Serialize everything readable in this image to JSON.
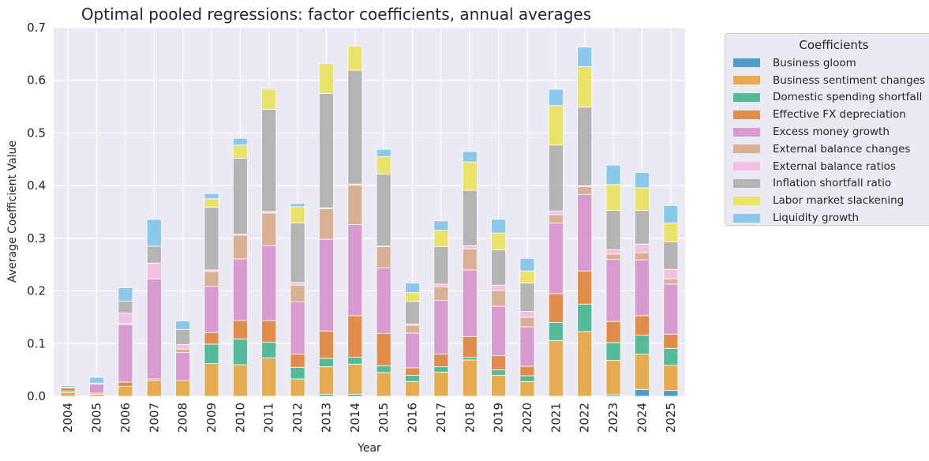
{
  "chart_data": {
    "type": "bar",
    "stacked": true,
    "title": "Optimal pooled regressions: factor coefficients, annual averages",
    "xlabel": "Year",
    "ylabel": "Average Coefficient Value",
    "ylim": [
      0,
      0.7
    ],
    "yticks": [
      "0.0",
      "0.1",
      "0.2",
      "0.3",
      "0.4",
      "0.5",
      "0.6",
      "0.7"
    ],
    "grid": true,
    "legend_title": "Coefficients",
    "legend_position": "outside-right",
    "categories": [
      "2004",
      "2005",
      "2006",
      "2007",
      "2008",
      "2009",
      "2010",
      "2011",
      "2012",
      "2013",
      "2014",
      "2015",
      "2016",
      "2017",
      "2018",
      "2019",
      "2020",
      "2021",
      "2022",
      "2023",
      "2024",
      "2025"
    ],
    "series": [
      {
        "name": "Business gloom",
        "color": "#3b8fc2",
        "values": [
          0,
          0,
          0,
          0,
          0,
          0,
          0,
          0,
          0,
          0.004,
          0.004,
          0,
          0,
          0,
          0,
          0,
          0,
          0,
          0,
          0.003,
          0.013,
          0.011
        ]
      },
      {
        "name": "Business sentiment changes",
        "color": "#e2a23a",
        "values": [
          0.007,
          0.004,
          0.019,
          0.03,
          0.03,
          0.062,
          0.06,
          0.073,
          0.033,
          0.052,
          0.057,
          0.045,
          0.028,
          0.046,
          0.069,
          0.04,
          0.028,
          0.106,
          0.123,
          0.065,
          0.067,
          0.048
        ]
      },
      {
        "name": "Domestic spending shortfall",
        "color": "#3fb38c",
        "values": [
          0.003,
          0,
          0,
          0,
          0,
          0.037,
          0.049,
          0.03,
          0.022,
          0.016,
          0.013,
          0.013,
          0.012,
          0.01,
          0.005,
          0.01,
          0.011,
          0.034,
          0.052,
          0.034,
          0.036,
          0.032
        ]
      },
      {
        "name": "Effective FX depreciation",
        "color": "#de7e34",
        "values": [
          0.006,
          0.002,
          0.008,
          0.003,
          0,
          0.022,
          0.035,
          0.04,
          0.025,
          0.052,
          0.079,
          0.061,
          0.014,
          0.024,
          0.039,
          0.027,
          0.018,
          0.055,
          0.063,
          0.04,
          0.037,
          0.027
        ]
      },
      {
        "name": "Excess money growth",
        "color": "#d48fc9",
        "values": [
          0,
          0.017,
          0.109,
          0.19,
          0.053,
          0.088,
          0.117,
          0.143,
          0.099,
          0.174,
          0.173,
          0.125,
          0.066,
          0.102,
          0.127,
          0.094,
          0.075,
          0.134,
          0.145,
          0.118,
          0.106,
          0.095
        ]
      },
      {
        "name": "External balance changes",
        "color": "#d6a785",
        "values": [
          0,
          0.002,
          0.002,
          0,
          0.007,
          0.028,
          0.045,
          0.062,
          0.032,
          0.058,
          0.075,
          0.04,
          0.015,
          0.026,
          0.04,
          0.03,
          0.018,
          0.016,
          0.015,
          0.01,
          0.014,
          0.01
        ]
      },
      {
        "name": "External balance ratios",
        "color": "#f5b8e0",
        "values": [
          0,
          0,
          0.02,
          0.03,
          0.008,
          0.003,
          0.002,
          0.003,
          0.005,
          0.002,
          0.002,
          0.001,
          0.002,
          0.005,
          0.006,
          0.01,
          0.011,
          0.007,
          0.002,
          0.008,
          0.016,
          0.018
        ]
      },
      {
        "name": "Inflation shortfall ratio",
        "color": "#acacac",
        "values": [
          0.001,
          0,
          0.023,
          0.032,
          0.029,
          0.119,
          0.144,
          0.194,
          0.113,
          0.217,
          0.216,
          0.137,
          0.043,
          0.071,
          0.105,
          0.067,
          0.054,
          0.125,
          0.149,
          0.075,
          0.064,
          0.052
        ]
      },
      {
        "name": "Labor market slackening",
        "color": "#e8e05a",
        "values": [
          0,
          0,
          0,
          0,
          0,
          0.016,
          0.025,
          0.038,
          0.031,
          0.057,
          0.046,
          0.033,
          0.017,
          0.031,
          0.054,
          0.032,
          0.023,
          0.075,
          0.077,
          0.049,
          0.043,
          0.036
        ]
      },
      {
        "name": "Liquidity growth",
        "color": "#7ec1ea",
        "values": [
          0.003,
          0.011,
          0.025,
          0.051,
          0.016,
          0.01,
          0.013,
          0.002,
          0.006,
          0,
          0,
          0.014,
          0.018,
          0.018,
          0.02,
          0.026,
          0.024,
          0.031,
          0.037,
          0.037,
          0.029,
          0.033
        ]
      }
    ]
  }
}
